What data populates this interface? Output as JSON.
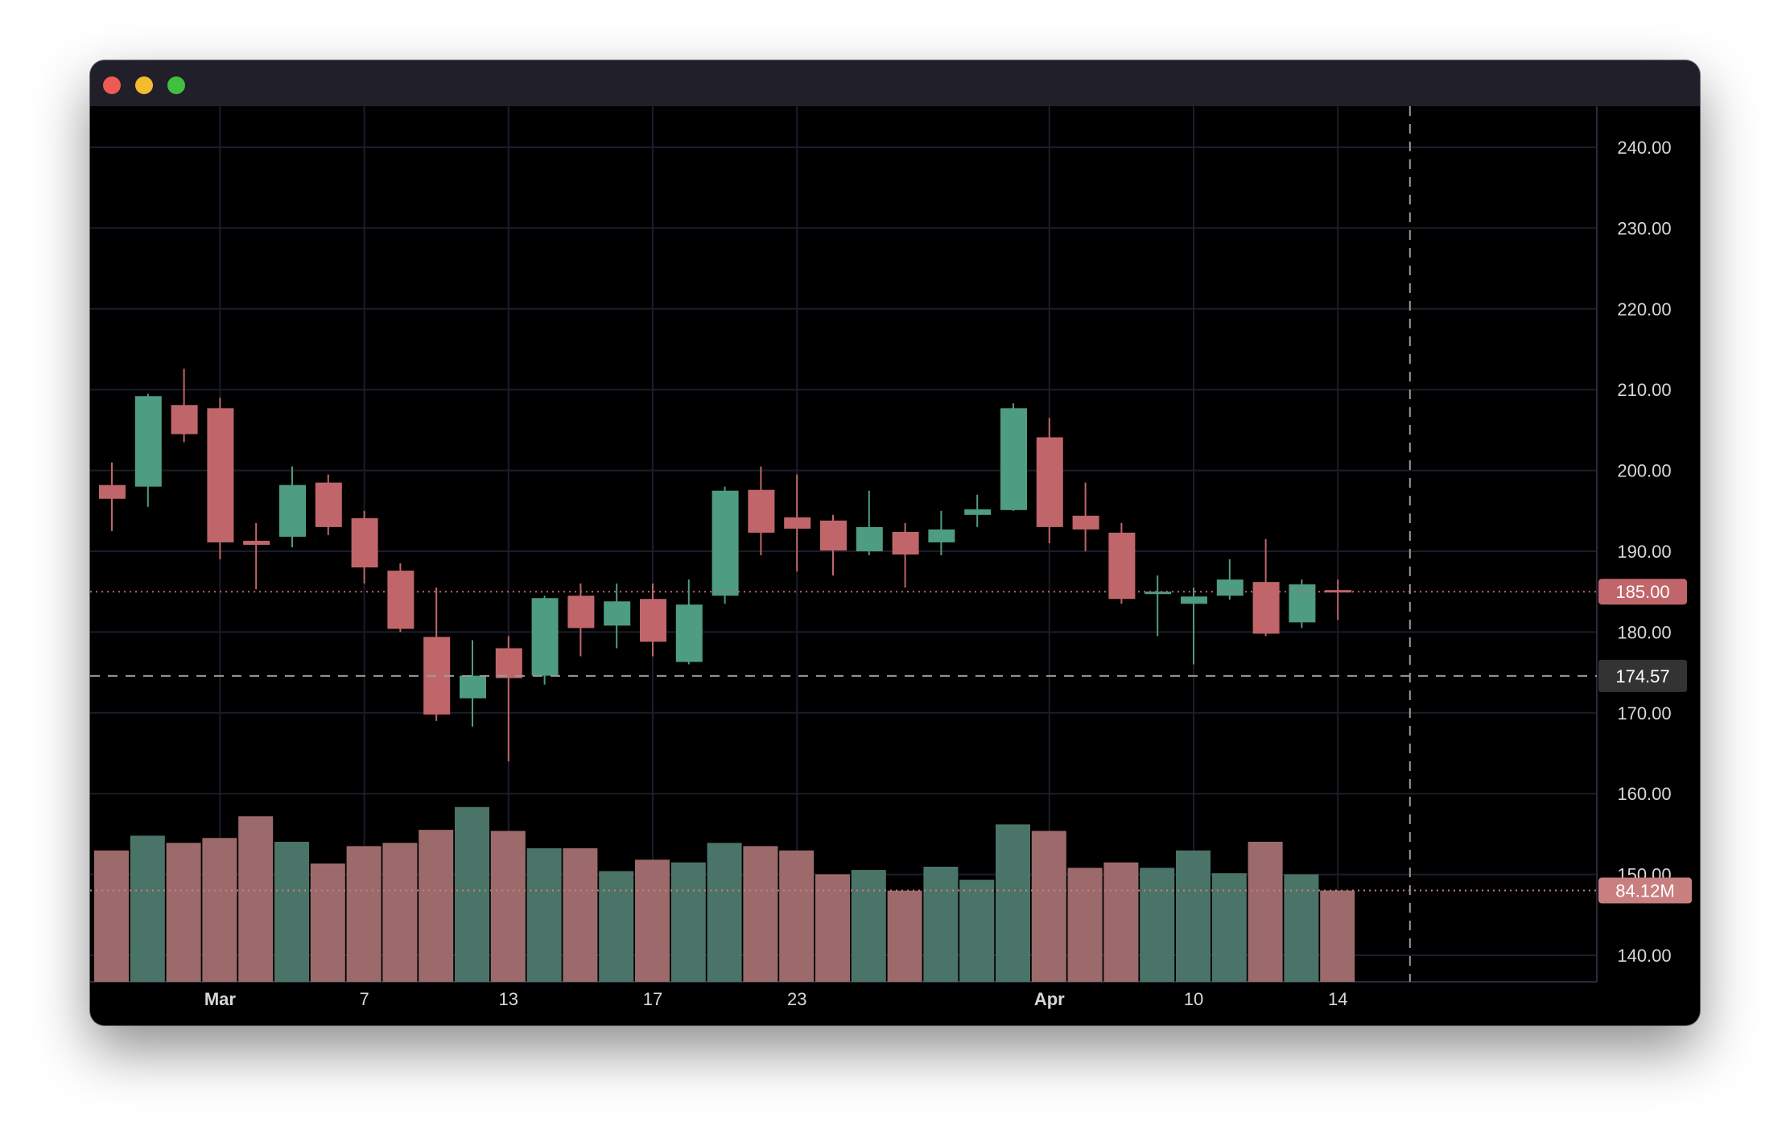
{
  "window": {
    "controls": [
      "close",
      "minimize",
      "maximize"
    ]
  },
  "chart_data": {
    "type": "candlestick",
    "title": "",
    "y_axis": {
      "ticks": [
        "240.00",
        "230.00",
        "220.00",
        "210.00",
        "200.00",
        "190.00",
        "180.00",
        "170.00",
        "160.00",
        "150.00",
        "140.00"
      ],
      "range": [
        137,
        245
      ],
      "position": "right"
    },
    "x_axis": {
      "labels": [
        {
          "text": "Mar",
          "index": 3,
          "bold": true
        },
        {
          "text": "7",
          "index": 7,
          "bold": false
        },
        {
          "text": "13",
          "index": 11,
          "bold": false
        },
        {
          "text": "17",
          "index": 15,
          "bold": false
        },
        {
          "text": "23",
          "index": 19,
          "bold": false
        },
        {
          "text": "Apr",
          "index": 26,
          "bold": true
        },
        {
          "text": "10",
          "index": 30,
          "bold": false
        },
        {
          "text": "14",
          "index": 34,
          "bold": false
        }
      ]
    },
    "grid": true,
    "colors": {
      "up": "#4e9c82",
      "down": "#c0666a",
      "volume_up": "#4b7468",
      "volume_down": "#9c6a6b",
      "grid": "#1c1c2c",
      "background": "#000000"
    },
    "candles": [
      {
        "o": 198.2,
        "h": 201.0,
        "l": 192.5,
        "c": 196.5,
        "v": 121
      },
      {
        "o": 198.0,
        "h": 209.5,
        "l": 195.5,
        "c": 209.2,
        "v": 134.6
      },
      {
        "o": 208.1,
        "h": 212.6,
        "l": 203.5,
        "c": 204.5,
        "v": 128
      },
      {
        "o": 207.7,
        "h": 209.0,
        "l": 189.0,
        "c": 191.1,
        "v": 132.5
      },
      {
        "o": 191.3,
        "h": 193.5,
        "l": 185.3,
        "c": 190.8,
        "v": 152.5
      },
      {
        "o": 191.8,
        "h": 200.5,
        "l": 190.5,
        "c": 198.2,
        "v": 129
      },
      {
        "o": 198.5,
        "h": 199.5,
        "l": 192.0,
        "c": 193.0,
        "v": 109
      },
      {
        "o": 194.1,
        "h": 195.0,
        "l": 186.0,
        "c": 188.0,
        "v": 125
      },
      {
        "o": 187.6,
        "h": 188.5,
        "l": 180.0,
        "c": 180.4,
        "v": 128
      },
      {
        "o": 179.4,
        "h": 185.5,
        "l": 169.0,
        "c": 169.8,
        "v": 140
      },
      {
        "o": 171.8,
        "h": 179.0,
        "l": 168.3,
        "c": 174.6,
        "v": 161
      },
      {
        "o": 178.0,
        "h": 179.5,
        "l": 164.0,
        "c": 174.3,
        "v": 139
      },
      {
        "o": 174.6,
        "h": 184.5,
        "l": 173.5,
        "c": 184.2,
        "v": 123
      },
      {
        "o": 184.5,
        "h": 186.0,
        "l": 177.0,
        "c": 180.5,
        "v": 123
      },
      {
        "o": 180.8,
        "h": 186.0,
        "l": 178.0,
        "c": 183.8,
        "v": 102
      },
      {
        "o": 184.1,
        "h": 186.0,
        "l": 177.0,
        "c": 178.8,
        "v": 112.5
      },
      {
        "o": 176.3,
        "h": 186.5,
        "l": 176.0,
        "c": 183.4,
        "v": 110
      },
      {
        "o": 184.5,
        "h": 198.0,
        "l": 183.5,
        "c": 197.5,
        "v": 128
      },
      {
        "o": 197.6,
        "h": 200.5,
        "l": 189.5,
        "c": 192.3,
        "v": 125
      },
      {
        "o": 194.2,
        "h": 199.5,
        "l": 187.5,
        "c": 192.8,
        "v": 121
      },
      {
        "o": 193.8,
        "h": 194.5,
        "l": 187.0,
        "c": 190.1,
        "v": 99
      },
      {
        "o": 190.0,
        "h": 197.5,
        "l": 189.5,
        "c": 193.0,
        "v": 103
      },
      {
        "o": 192.4,
        "h": 193.5,
        "l": 185.5,
        "c": 189.6,
        "v": 84
      },
      {
        "o": 191.1,
        "h": 195.0,
        "l": 189.5,
        "c": 192.7,
        "v": 106
      },
      {
        "o": 194.5,
        "h": 197.0,
        "l": 193.0,
        "c": 195.2,
        "v": 94
      },
      {
        "o": 195.1,
        "h": 208.3,
        "l": 195.0,
        "c": 207.7,
        "v": 145
      },
      {
        "o": 204.1,
        "h": 206.5,
        "l": 191.0,
        "c": 193.0,
        "v": 139
      },
      {
        "o": 194.4,
        "h": 198.5,
        "l": 190.0,
        "c": 192.7,
        "v": 105
      },
      {
        "o": 192.3,
        "h": 193.5,
        "l": 183.5,
        "c": 184.1,
        "v": 110
      },
      {
        "o": 184.7,
        "h": 187.0,
        "l": 179.5,
        "c": 185.0,
        "v": 105
      },
      {
        "o": 183.5,
        "h": 185.5,
        "l": 176.0,
        "c": 184.4,
        "v": 121
      },
      {
        "o": 184.5,
        "h": 189.0,
        "l": 184.0,
        "c": 186.5,
        "v": 100
      },
      {
        "o": 186.2,
        "h": 191.5,
        "l": 179.5,
        "c": 179.8,
        "v": 129
      },
      {
        "o": 181.2,
        "h": 186.5,
        "l": 180.5,
        "c": 185.9,
        "v": 99
      },
      {
        "o": 185.2,
        "h": 186.5,
        "l": 181.5,
        "c": 185.0,
        "v": 84.12
      }
    ],
    "volume_unit": "M",
    "last_price": {
      "value": 185.0,
      "label": "185.00",
      "color": "#c0666a"
    },
    "last_volume": {
      "value": 84.12,
      "label": "84.12M",
      "color": "#c97f80"
    },
    "crosshair": {
      "price": 174.57,
      "label": "174.57",
      "index": 36
    }
  }
}
